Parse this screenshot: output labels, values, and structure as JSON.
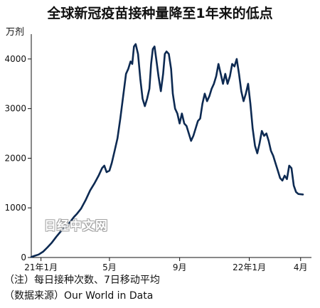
{
  "title": "全球新冠疫苗接种量降至1年来的低点",
  "notes": {
    "note": "（注）每日接种次数、7日移动平均",
    "source": "（数据来源）Our World in Data"
  },
  "watermark": "日经中文网",
  "chart_data": {
    "type": "line",
    "title": "全球新冠疫苗接种量降至1年来的低点",
    "ylabel": "万剂",
    "xlabel": "",
    "ylim": [
      0,
      4500
    ],
    "yticks": [
      0,
      1000,
      2000,
      3000,
      4000
    ],
    "xlim": [
      "2020-12-15",
      "2022-04-20"
    ],
    "xticks": [
      {
        "date": "2021-01-01",
        "label": "21年1月"
      },
      {
        "date": "2021-05-01",
        "label": "5月"
      },
      {
        "date": "2021-09-01",
        "label": "9月"
      },
      {
        "date": "2022-01-01",
        "label": "22年1月"
      },
      {
        "date": "2022-04-01",
        "label": "4月"
      }
    ],
    "grid": false,
    "legend": "none",
    "color": "#0d2a52",
    "series": [
      {
        "name": "",
        "points": [
          [
            "2020-12-15",
            10
          ],
          [
            "2020-12-20",
            30
          ],
          [
            "2020-12-28",
            60
          ],
          [
            "2021-01-05",
            120
          ],
          [
            "2021-01-12",
            200
          ],
          [
            "2021-01-20",
            300
          ],
          [
            "2021-01-28",
            420
          ],
          [
            "2021-02-05",
            530
          ],
          [
            "2021-02-12",
            600
          ],
          [
            "2021-02-20",
            700
          ],
          [
            "2021-02-28",
            820
          ],
          [
            "2021-03-05",
            880
          ],
          [
            "2021-03-12",
            980
          ],
          [
            "2021-03-20",
            1150
          ],
          [
            "2021-03-28",
            1350
          ],
          [
            "2021-04-05",
            1500
          ],
          [
            "2021-04-12",
            1650
          ],
          [
            "2021-04-18",
            1800
          ],
          [
            "2021-04-22",
            1850
          ],
          [
            "2021-04-26",
            1720
          ],
          [
            "2021-05-01",
            1750
          ],
          [
            "2021-05-05",
            1900
          ],
          [
            "2021-05-10",
            2150
          ],
          [
            "2021-05-15",
            2400
          ],
          [
            "2021-05-20",
            2800
          ],
          [
            "2021-05-25",
            3250
          ],
          [
            "2021-05-30",
            3700
          ],
          [
            "2021-06-03",
            3800
          ],
          [
            "2021-06-07",
            3950
          ],
          [
            "2021-06-10",
            3900
          ],
          [
            "2021-06-13",
            4250
          ],
          [
            "2021-06-16",
            4300
          ],
          [
            "2021-06-20",
            4100
          ],
          [
            "2021-06-24",
            3600
          ],
          [
            "2021-06-28",
            3200
          ],
          [
            "2021-07-02",
            3050
          ],
          [
            "2021-07-06",
            3200
          ],
          [
            "2021-07-10",
            3400
          ],
          [
            "2021-07-13",
            3900
          ],
          [
            "2021-07-16",
            4200
          ],
          [
            "2021-07-19",
            4250
          ],
          [
            "2021-07-22",
            4000
          ],
          [
            "2021-07-26",
            3650
          ],
          [
            "2021-07-30",
            3350
          ],
          [
            "2021-08-03",
            3700
          ],
          [
            "2021-08-06",
            4100
          ],
          [
            "2021-08-09",
            4150
          ],
          [
            "2021-08-13",
            4100
          ],
          [
            "2021-08-17",
            3800
          ],
          [
            "2021-08-20",
            3300
          ],
          [
            "2021-08-24",
            3000
          ],
          [
            "2021-08-28",
            2900
          ],
          [
            "2021-09-01",
            2700
          ],
          [
            "2021-09-05",
            2900
          ],
          [
            "2021-09-09",
            2700
          ],
          [
            "2021-09-13",
            2650
          ],
          [
            "2021-09-17",
            2500
          ],
          [
            "2021-09-21",
            2350
          ],
          [
            "2021-09-25",
            2450
          ],
          [
            "2021-09-29",
            2600
          ],
          [
            "2021-10-03",
            2750
          ],
          [
            "2021-10-07",
            2800
          ],
          [
            "2021-10-11",
            3100
          ],
          [
            "2021-10-15",
            3300
          ],
          [
            "2021-10-19",
            3150
          ],
          [
            "2021-10-23",
            3250
          ],
          [
            "2021-10-27",
            3400
          ],
          [
            "2021-10-31",
            3500
          ],
          [
            "2021-11-04",
            3650
          ],
          [
            "2021-11-08",
            3900
          ],
          [
            "2021-11-12",
            3700
          ],
          [
            "2021-11-16",
            3500
          ],
          [
            "2021-11-20",
            3700
          ],
          [
            "2021-11-24",
            3500
          ],
          [
            "2021-11-28",
            3650
          ],
          [
            "2021-12-02",
            3900
          ],
          [
            "2021-12-06",
            3850
          ],
          [
            "2021-12-10",
            4000
          ],
          [
            "2021-12-14",
            3700
          ],
          [
            "2021-12-18",
            3350
          ],
          [
            "2021-12-22",
            3150
          ],
          [
            "2021-12-26",
            3300
          ],
          [
            "2021-12-30",
            3500
          ],
          [
            "2022-01-03",
            3100
          ],
          [
            "2022-01-07",
            2600
          ],
          [
            "2022-01-11",
            2250
          ],
          [
            "2022-01-15",
            2100
          ],
          [
            "2022-01-19",
            2300
          ],
          [
            "2022-01-23",
            2550
          ],
          [
            "2022-01-27",
            2450
          ],
          [
            "2022-01-31",
            2500
          ],
          [
            "2022-02-04",
            2350
          ],
          [
            "2022-02-08",
            2150
          ],
          [
            "2022-02-12",
            2050
          ],
          [
            "2022-02-16",
            1900
          ],
          [
            "2022-02-20",
            1750
          ],
          [
            "2022-02-24",
            1600
          ],
          [
            "2022-02-28",
            1550
          ],
          [
            "2022-03-04",
            1650
          ],
          [
            "2022-03-08",
            1580
          ],
          [
            "2022-03-12",
            1850
          ],
          [
            "2022-03-16",
            1800
          ],
          [
            "2022-03-20",
            1450
          ],
          [
            "2022-03-24",
            1320
          ],
          [
            "2022-03-28",
            1280
          ],
          [
            "2022-04-05",
            1270
          ]
        ]
      }
    ]
  }
}
